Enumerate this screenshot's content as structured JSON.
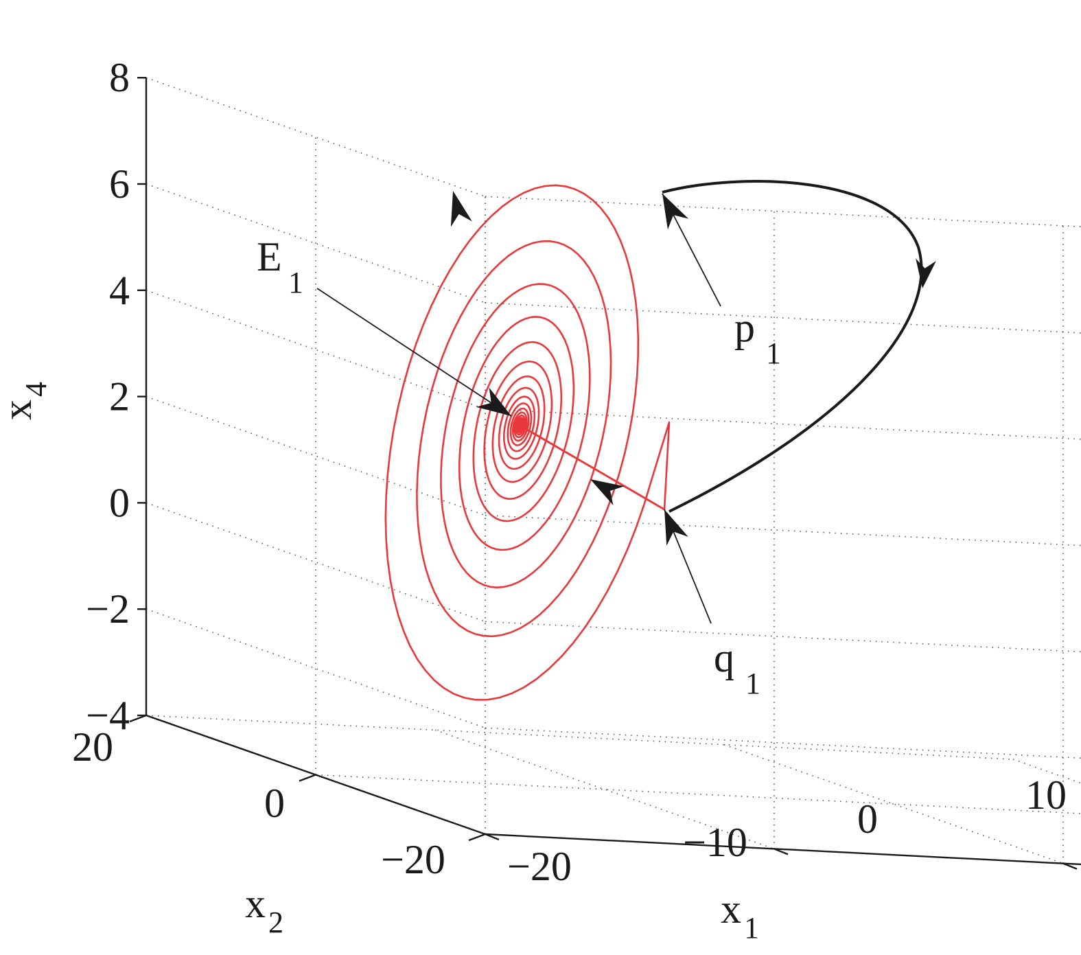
{
  "chart_data": {
    "type": "line",
    "projection": "3d",
    "axes": {
      "x1": {
        "label": "x",
        "label_sub": "1",
        "ticks": [
          {
            "value": -20,
            "text": "−20"
          },
          {
            "value": -10,
            "text": "−10"
          },
          {
            "value": 0,
            "text": "0"
          },
          {
            "value": 10,
            "text": "10"
          }
        ]
      },
      "x2": {
        "label": "x",
        "label_sub": "2",
        "ticks": [
          {
            "value": -20,
            "text": "−20"
          },
          {
            "value": 0,
            "text": "0"
          },
          {
            "value": 20,
            "text": "20"
          }
        ]
      },
      "x4": {
        "label": "x",
        "label_sub": "4",
        "ticks": [
          {
            "value": -4,
            "text": "−4"
          },
          {
            "value": -2,
            "text": "−2"
          },
          {
            "value": 0,
            "text": "0"
          },
          {
            "value": 2,
            "text": "2"
          },
          {
            "value": 4,
            "text": "4"
          },
          {
            "value": 6,
            "text": "6"
          },
          {
            "value": 8,
            "text": "8"
          }
        ]
      }
    },
    "grid": true,
    "grid_style": "dotted",
    "series": [
      {
        "kind": "spiral",
        "color": "#e8383b",
        "turns": 22
      },
      {
        "kind": "arc",
        "color": "#1a1a1a"
      }
    ],
    "annotations": [
      {
        "text": "E",
        "sub": "1"
      },
      {
        "text": "p",
        "sub": "1"
      },
      {
        "text": "q",
        "sub": "1"
      }
    ],
    "colors": {
      "spiral": "#e8383b",
      "connection": "#1a1a1a",
      "axis": "#1a1a1a",
      "grid": "#555555"
    }
  }
}
